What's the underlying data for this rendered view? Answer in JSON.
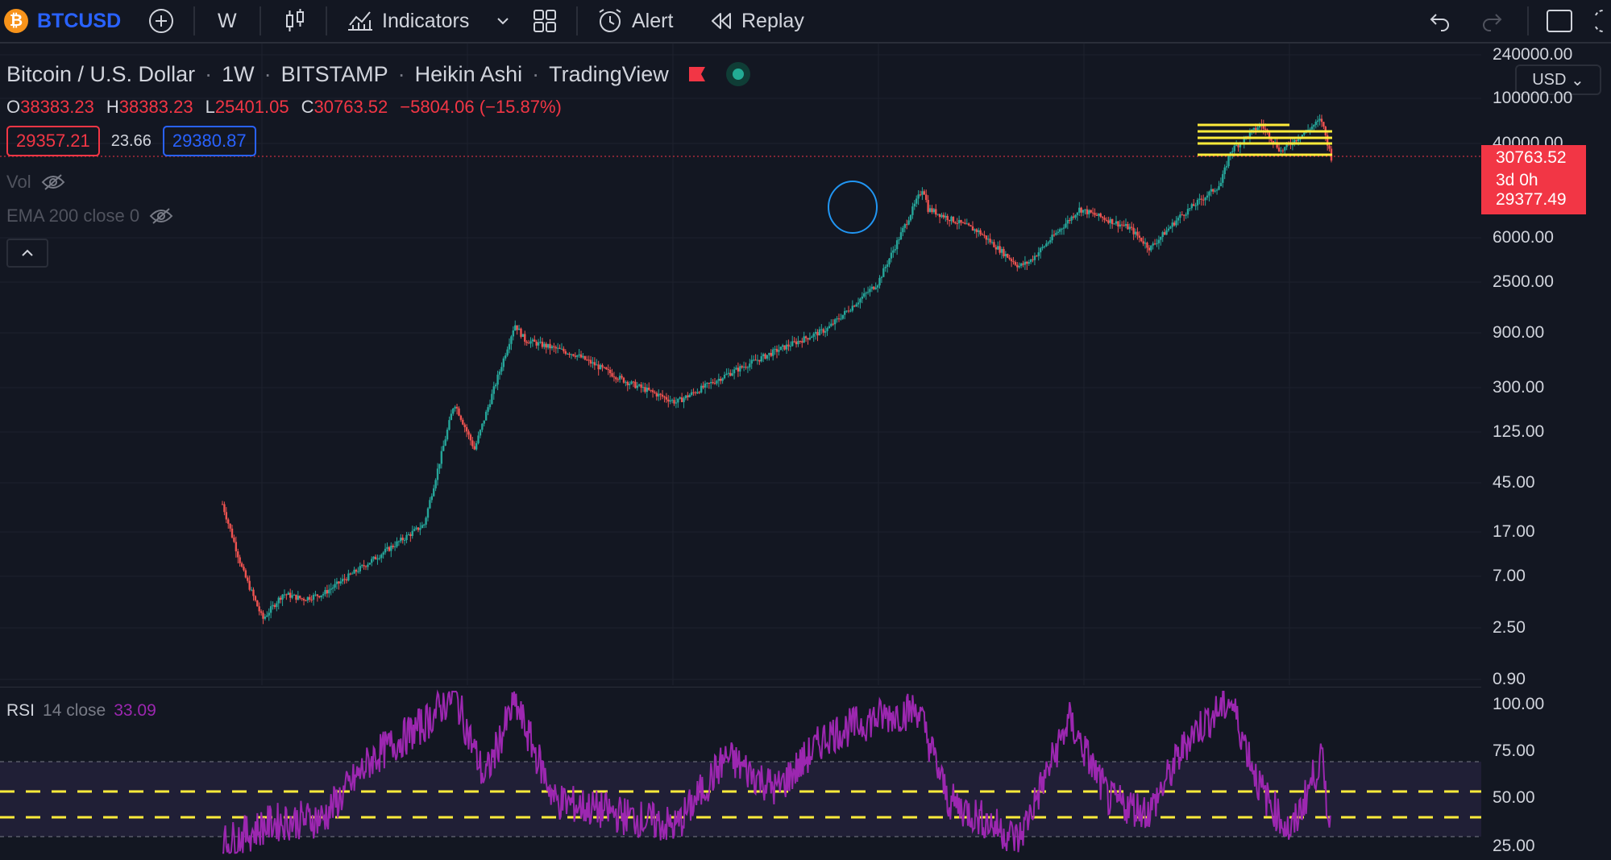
{
  "toolbar": {
    "symbol": "BTCUSD",
    "interval": "W",
    "indicators_label": "Indicators",
    "alert_label": "Alert",
    "replay_label": "Replay",
    "icons": [
      "bitcoin-logo-icon",
      "add-symbol-icon",
      "candles-icon",
      "indicators-icon",
      "chevron-down-icon",
      "layouts-icon",
      "alert-icon",
      "replay-icon",
      "undo-icon",
      "redo-icon",
      "fullscreen-icon",
      "snapshot-icon"
    ]
  },
  "legend": {
    "title": "Bitcoin / U.S. Dollar",
    "interval": "1W",
    "exchange": "BITSTAMP",
    "chart_style": "Heikin Ashi",
    "source": "TradingView",
    "ohlc": {
      "o_key": "O",
      "o": "38383.23",
      "h_key": "H",
      "h": "38383.23",
      "l_key": "L",
      "l": "25401.05",
      "c_key": "C",
      "c": "30763.52",
      "change": "−5804.06 (−15.87%)"
    },
    "bid": "29357.21",
    "spread": "23.66",
    "ask": "29380.87",
    "vol_label": "Vol",
    "ema_label": "EMA 200 close 0"
  },
  "rsi_legend": {
    "name": "RSI",
    "params": "14 close",
    "value": "33.09"
  },
  "price_axis": {
    "currency": "USD",
    "labels": [
      "240000.00",
      "100000.00",
      "40000.00",
      "6000.00",
      "2500.00",
      "900.00",
      "300.00",
      "125.00",
      "45.00",
      "17.00",
      "7.00",
      "2.50",
      "0.90"
    ],
    "last_price": "30763.52",
    "countdown": "3d 0h",
    "bid_tag": "29377.49"
  },
  "rsi_axis": {
    "labels": [
      "100.00",
      "75.00",
      "50.00",
      "25.00"
    ]
  },
  "colors": {
    "bg": "#131722",
    "up": "#26a69a",
    "down": "#ef5350",
    "accent": "#2962ff",
    "rsi": "#9c27b0",
    "yellow": "#ffeb3b"
  },
  "chart_data": {
    "type": "line",
    "title": "Bitcoin / U.S. Dollar",
    "scale": "log",
    "x": [
      2011,
      2011.2,
      2011.4,
      2011.6,
      2011.8,
      2012,
      2012.5,
      2013,
      2013.3,
      2013.5,
      2013.9,
      2014,
      2014.5,
      2015,
      2015.5,
      2016,
      2016.5,
      2017,
      2017.5,
      2017.95,
      2018,
      2018.5,
      2018.9,
      2019,
      2019.5,
      2020,
      2020.2,
      2020.5,
      2020.9,
      2021,
      2021.3,
      2021.5,
      2021.9,
      2022.0
    ],
    "y": [
      30,
      8,
      3,
      5,
      4.5,
      5,
      10,
      20,
      230,
      90,
      1100,
      800,
      600,
      350,
      230,
      400,
      650,
      1000,
      2500,
      17000,
      11000,
      7000,
      3500,
      3800,
      11000,
      7500,
      5000,
      9500,
      18000,
      35000,
      60000,
      35000,
      66000,
      30763
    ],
    "ylim": [
      0.9,
      240000
    ],
    "rsi": {
      "name": "RSI",
      "x": [
        2011,
        2011.5,
        2012,
        2012.5,
        2013,
        2013.3,
        2013.6,
        2013.9,
        2014.3,
        2014.8,
        2015.5,
        2016,
        2016.5,
        2017,
        2017.5,
        2017.9,
        2018.2,
        2018.6,
        2018.9,
        2019.4,
        2019.8,
        2020.2,
        2020.6,
        2021,
        2021.3,
        2021.6,
        2021.9,
        2022.0
      ],
      "values": [
        30,
        40,
        42,
        70,
        85,
        99,
        60,
        95,
        50,
        45,
        38,
        70,
        55,
        80,
        88,
        92,
        50,
        40,
        32,
        87,
        50,
        45,
        80,
        96,
        55,
        35,
        70,
        33
      ],
      "ylim": [
        25,
        100
      ],
      "bands": [
        30,
        70
      ]
    }
  }
}
